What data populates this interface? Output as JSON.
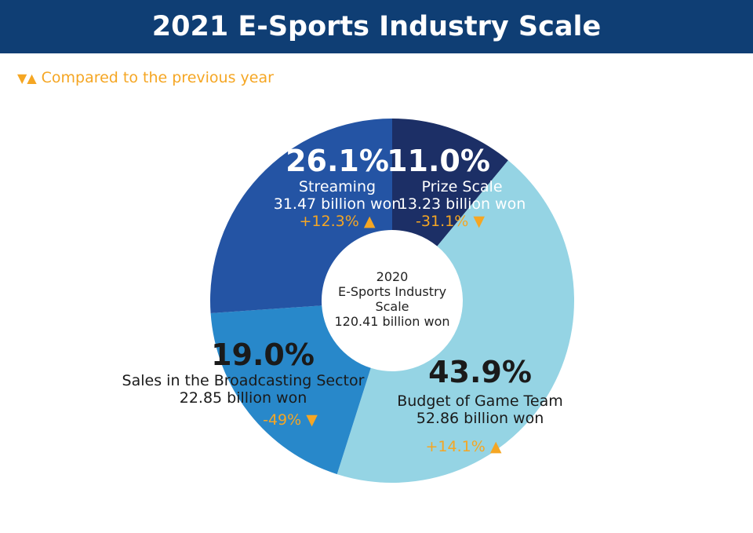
{
  "chart_data": {
    "type": "pie",
    "title": "2021 E-Sports Industry Scale",
    "subtitle": "Compared to the previous year",
    "legend_icons": [
      "triangle-down",
      "triangle-up"
    ],
    "center_label": [
      "2020",
      "E-Sports Industry",
      "Scale",
      "120.41 billion won"
    ],
    "slices": [
      {
        "name": "Prize Scale",
        "percent": 11.0,
        "percent_label": "11.0%",
        "amount": "13.23 billion won",
        "change": "-31.1%",
        "direction": "down",
        "color": "#1c2f66"
      },
      {
        "name": "Budget of Game Team",
        "percent": 43.9,
        "percent_label": "43.9%",
        "amount": "52.86 billion won",
        "change": "+14.1%",
        "direction": "up",
        "color": "#95d4e4"
      },
      {
        "name": "Sales in the Broadcasting Sector",
        "percent": 19.0,
        "percent_label": "19.0%",
        "amount": "22.85 billion won",
        "change": "-49%",
        "direction": "down",
        "color": "#2888ca"
      },
      {
        "name": "Streaming",
        "percent": 26.1,
        "percent_label": "26.1%",
        "amount": "31.47 billion won",
        "change": "+12.3%",
        "direction": "up",
        "color": "#2454a4"
      }
    ],
    "colors": {
      "header": "#0f3e74",
      "change": "#f5a623"
    }
  }
}
